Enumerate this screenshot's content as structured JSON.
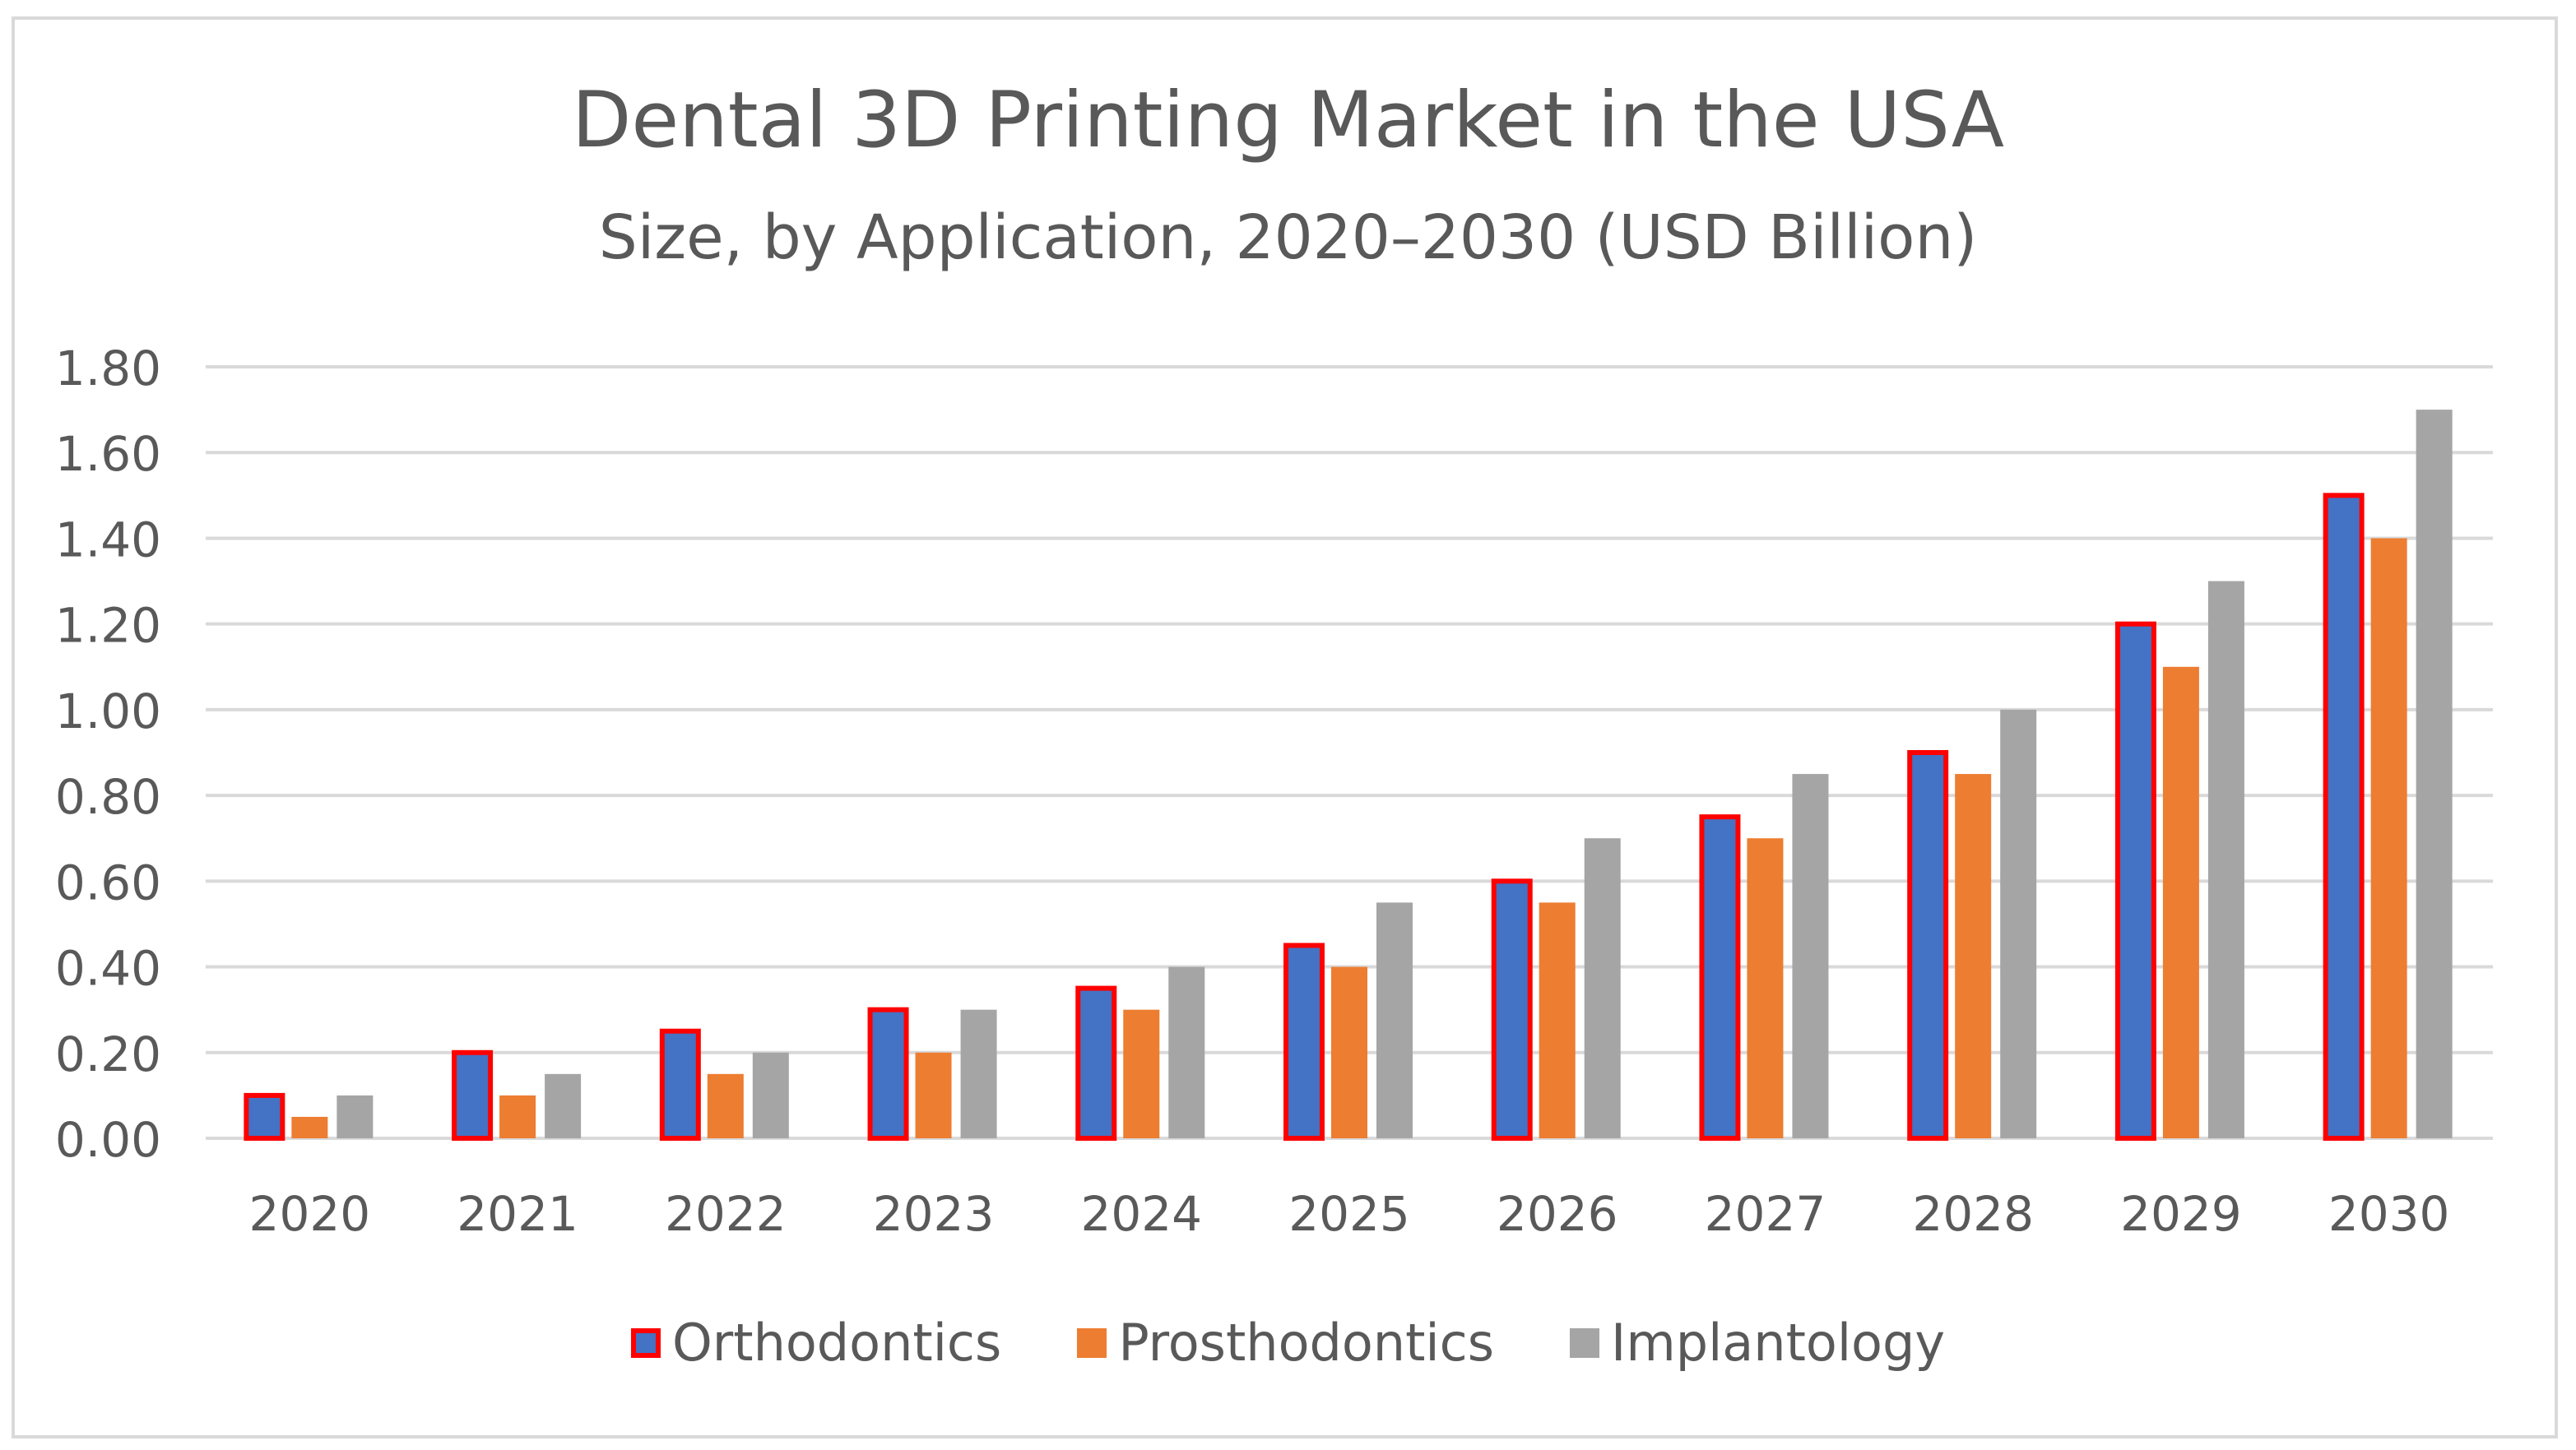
{
  "chart_data": {
    "type": "bar",
    "title": "Dental 3D Printing Market in the USA",
    "subtitle": "Size, by Application, 2020–2030 (USD Billion)",
    "xlabel": "",
    "ylabel": "",
    "categories": [
      "2020",
      "2021",
      "2022",
      "2023",
      "2024",
      "2025",
      "2026",
      "2027",
      "2028",
      "2029",
      "2030"
    ],
    "ylim": [
      0,
      1.8
    ],
    "yticks": [
      "0.00",
      "0.20",
      "0.40",
      "0.60",
      "0.80",
      "1.00",
      "1.20",
      "1.40",
      "1.60",
      "1.80"
    ],
    "grid": true,
    "legend_position": "bottom",
    "series": [
      {
        "name": "Orthodontics",
        "color": "#4472c4",
        "outline": "#ff0000",
        "values": [
          0.1,
          0.2,
          0.25,
          0.3,
          0.35,
          0.45,
          0.6,
          0.75,
          0.9,
          1.2,
          1.5
        ]
      },
      {
        "name": "Prosthodontics",
        "color": "#ed7d31",
        "values": [
          0.05,
          0.1,
          0.15,
          0.2,
          0.3,
          0.4,
          0.55,
          0.7,
          0.85,
          1.1,
          1.4
        ]
      },
      {
        "name": "Implantology",
        "color": "#a5a5a5",
        "values": [
          0.1,
          0.15,
          0.2,
          0.3,
          0.4,
          0.55,
          0.7,
          0.85,
          1.0,
          1.3,
          1.7
        ]
      }
    ]
  }
}
